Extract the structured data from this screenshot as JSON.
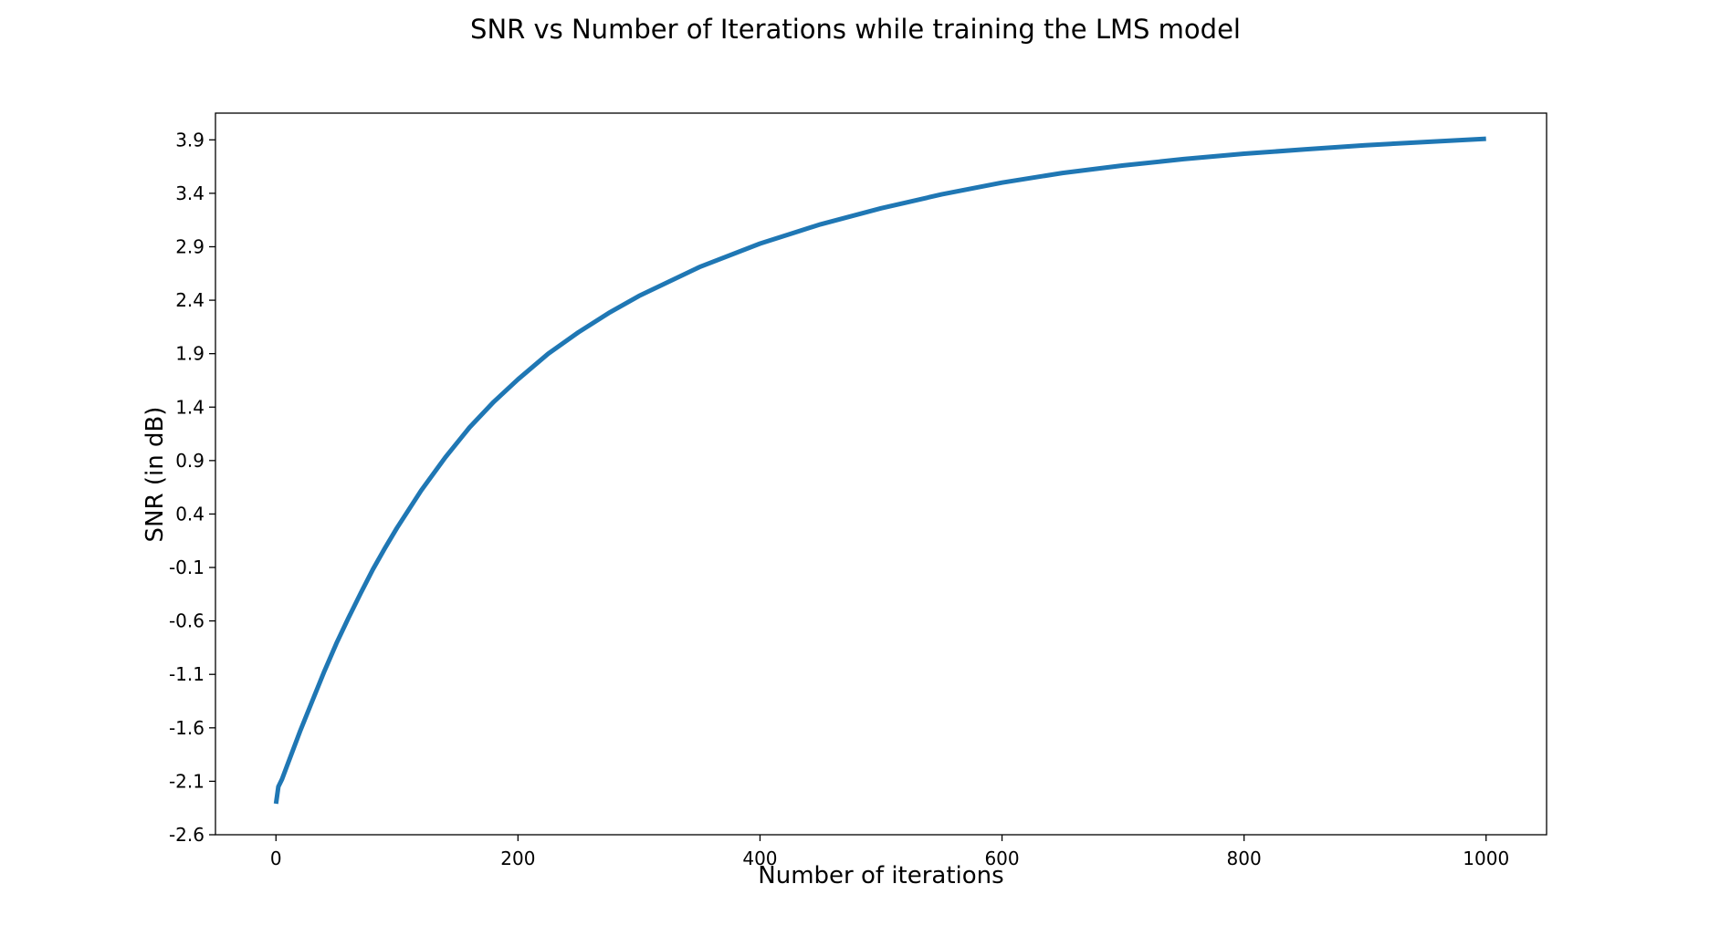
{
  "chart_data": {
    "type": "line",
    "title": "SNR vs Number of Iterations while training the LMS model",
    "xlabel": "Number of iterations",
    "ylabel": "SNR (in dB)",
    "xlim": [
      -50,
      1050
    ],
    "ylim": [
      -2.6,
      4.15
    ],
    "xticks": [
      0,
      200,
      400,
      600,
      800,
      1000
    ],
    "xtick_labels": [
      "0",
      "200",
      "400",
      "600",
      "800",
      "1000"
    ],
    "yticks": [
      -2.6,
      -2.1,
      -1.6,
      -1.1,
      -0.6,
      -0.1,
      0.4,
      0.9,
      1.4,
      1.9,
      2.4,
      2.9,
      3.4,
      3.9
    ],
    "ytick_labels": [
      "-2.6",
      "-2.1",
      "-1.6",
      "-1.1",
      "-0.6",
      "-0.1",
      "0.4",
      "0.9",
      "1.4",
      "1.9",
      "2.4",
      "2.9",
      "3.4",
      "3.9"
    ],
    "grid": false,
    "line_color": "#1f77b4",
    "series": [
      {
        "x": [
          0,
          2,
          5,
          10,
          20,
          30,
          40,
          50,
          60,
          70,
          80,
          90,
          100,
          120,
          140,
          160,
          180,
          200,
          225,
          250,
          275,
          300,
          350,
          400,
          450,
          500,
          550,
          600,
          650,
          700,
          750,
          800,
          850,
          900,
          950,
          1000
        ],
        "y": [
          -2.31,
          -2.15,
          -2.08,
          -1.93,
          -1.63,
          -1.35,
          -1.07,
          -0.81,
          -0.57,
          -0.34,
          -0.12,
          0.08,
          0.27,
          0.62,
          0.93,
          1.21,
          1.45,
          1.66,
          1.9,
          2.1,
          2.28,
          2.44,
          2.71,
          2.93,
          3.11,
          3.26,
          3.39,
          3.5,
          3.59,
          3.66,
          3.72,
          3.77,
          3.81,
          3.85,
          3.88,
          3.91
        ]
      }
    ]
  }
}
